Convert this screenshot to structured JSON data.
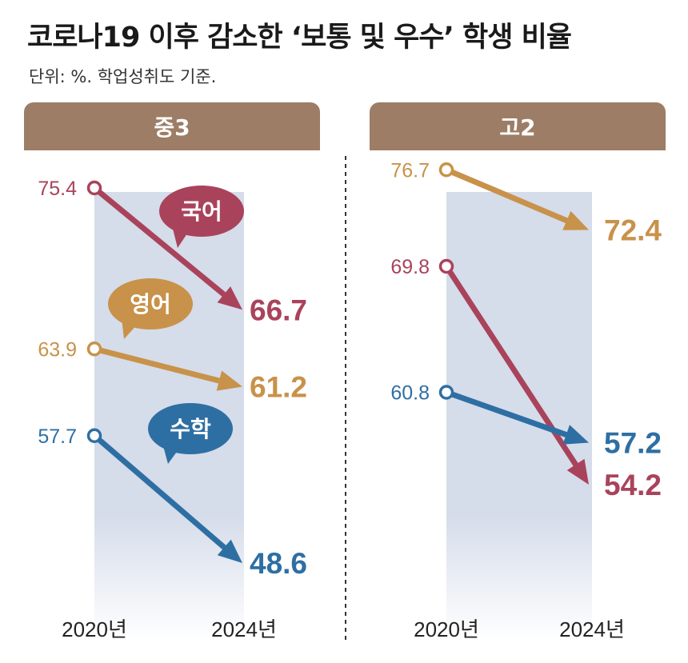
{
  "title": "코로나19 이후 감소한 ‘보통 및 우수’ 학생 비율",
  "subtitle": "단위: %. 학업성취도 기준.",
  "colors": {
    "korean": "#a9435b",
    "english": "#c8924a",
    "math": "#2e6fa3",
    "header": "#9d7d65",
    "band": "#d5dcea"
  },
  "chart_data": [
    {
      "type": "line",
      "panel": "중3",
      "x": [
        "2020년",
        "2024년"
      ],
      "series": [
        {
          "name": "국어",
          "key": "korean",
          "values": [
            75.4,
            66.7
          ],
          "labels": [
            "75.4",
            "66.7"
          ]
        },
        {
          "name": "영어",
          "key": "english",
          "values": [
            63.9,
            61.2
          ],
          "labels": [
            "63.9",
            "61.2"
          ]
        },
        {
          "name": "수학",
          "key": "math",
          "values": [
            57.7,
            48.6
          ],
          "labels": [
            "57.7",
            "48.6"
          ]
        }
      ]
    },
    {
      "type": "line",
      "panel": "고2",
      "x": [
        "2020년",
        "2024년"
      ],
      "series": [
        {
          "key": "english",
          "values": [
            76.7,
            72.4
          ],
          "labels": [
            "76.7",
            "72.4"
          ]
        },
        {
          "key": "korean",
          "values": [
            69.8,
            54.2
          ],
          "labels": [
            "69.8",
            "54.2"
          ]
        },
        {
          "key": "math",
          "values": [
            60.8,
            57.2
          ],
          "labels": [
            "60.8",
            "57.2"
          ]
        }
      ]
    }
  ]
}
